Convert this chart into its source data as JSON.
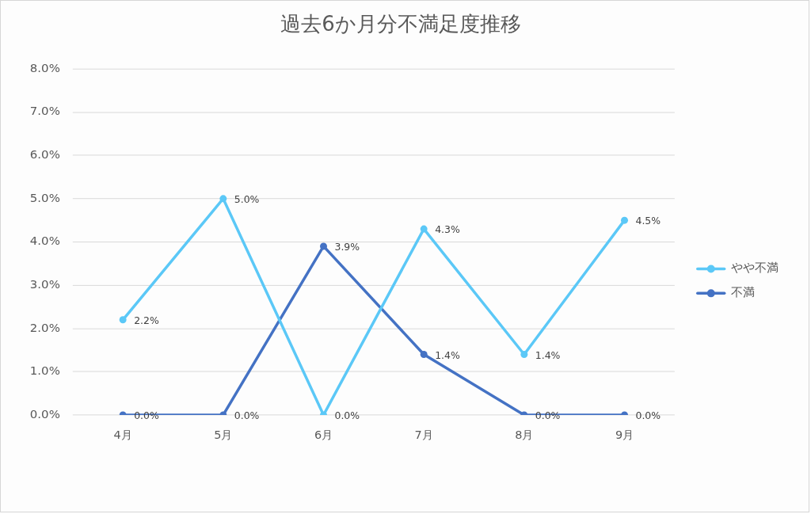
{
  "chart_data": {
    "type": "line",
    "title": "過去6か月分不満足度推移",
    "categories": [
      "4月",
      "5月",
      "6月",
      "7月",
      "8月",
      "9月"
    ],
    "series": [
      {
        "name": "やや不満",
        "color": "#5bc8f7",
        "values": [
          2.2,
          5.0,
          0,
          4.3,
          1.4,
          4.5
        ],
        "value_labels": [
          "2.2%",
          "5.0%",
          "0.0%",
          "4.3%",
          "1.4%",
          "4.5%"
        ]
      },
      {
        "name": "不満",
        "color": "#4472c4",
        "values": [
          0,
          0,
          3.9,
          1.4,
          0,
          0
        ],
        "value_labels": [
          "0.0%",
          "0.0%",
          "3.9%",
          "1.4%",
          "0.0%",
          "0.0%"
        ]
      }
    ],
    "ylim": [
      0,
      8
    ],
    "yticks": [
      {
        "value": 0,
        "label": "0.0%"
      },
      {
        "value": 1,
        "label": "1.0%"
      },
      {
        "value": 2,
        "label": "2.0%"
      },
      {
        "value": 3,
        "label": "3.0%"
      },
      {
        "value": 4,
        "label": "4.0%"
      },
      {
        "value": 5,
        "label": "5.0%"
      },
      {
        "value": 6,
        "label": "6.0%"
      },
      {
        "value": 7,
        "label": "7.0%"
      },
      {
        "value": 8,
        "label": "8.0%"
      }
    ],
    "grid": "y",
    "legend": "right",
    "marker": "circle"
  }
}
